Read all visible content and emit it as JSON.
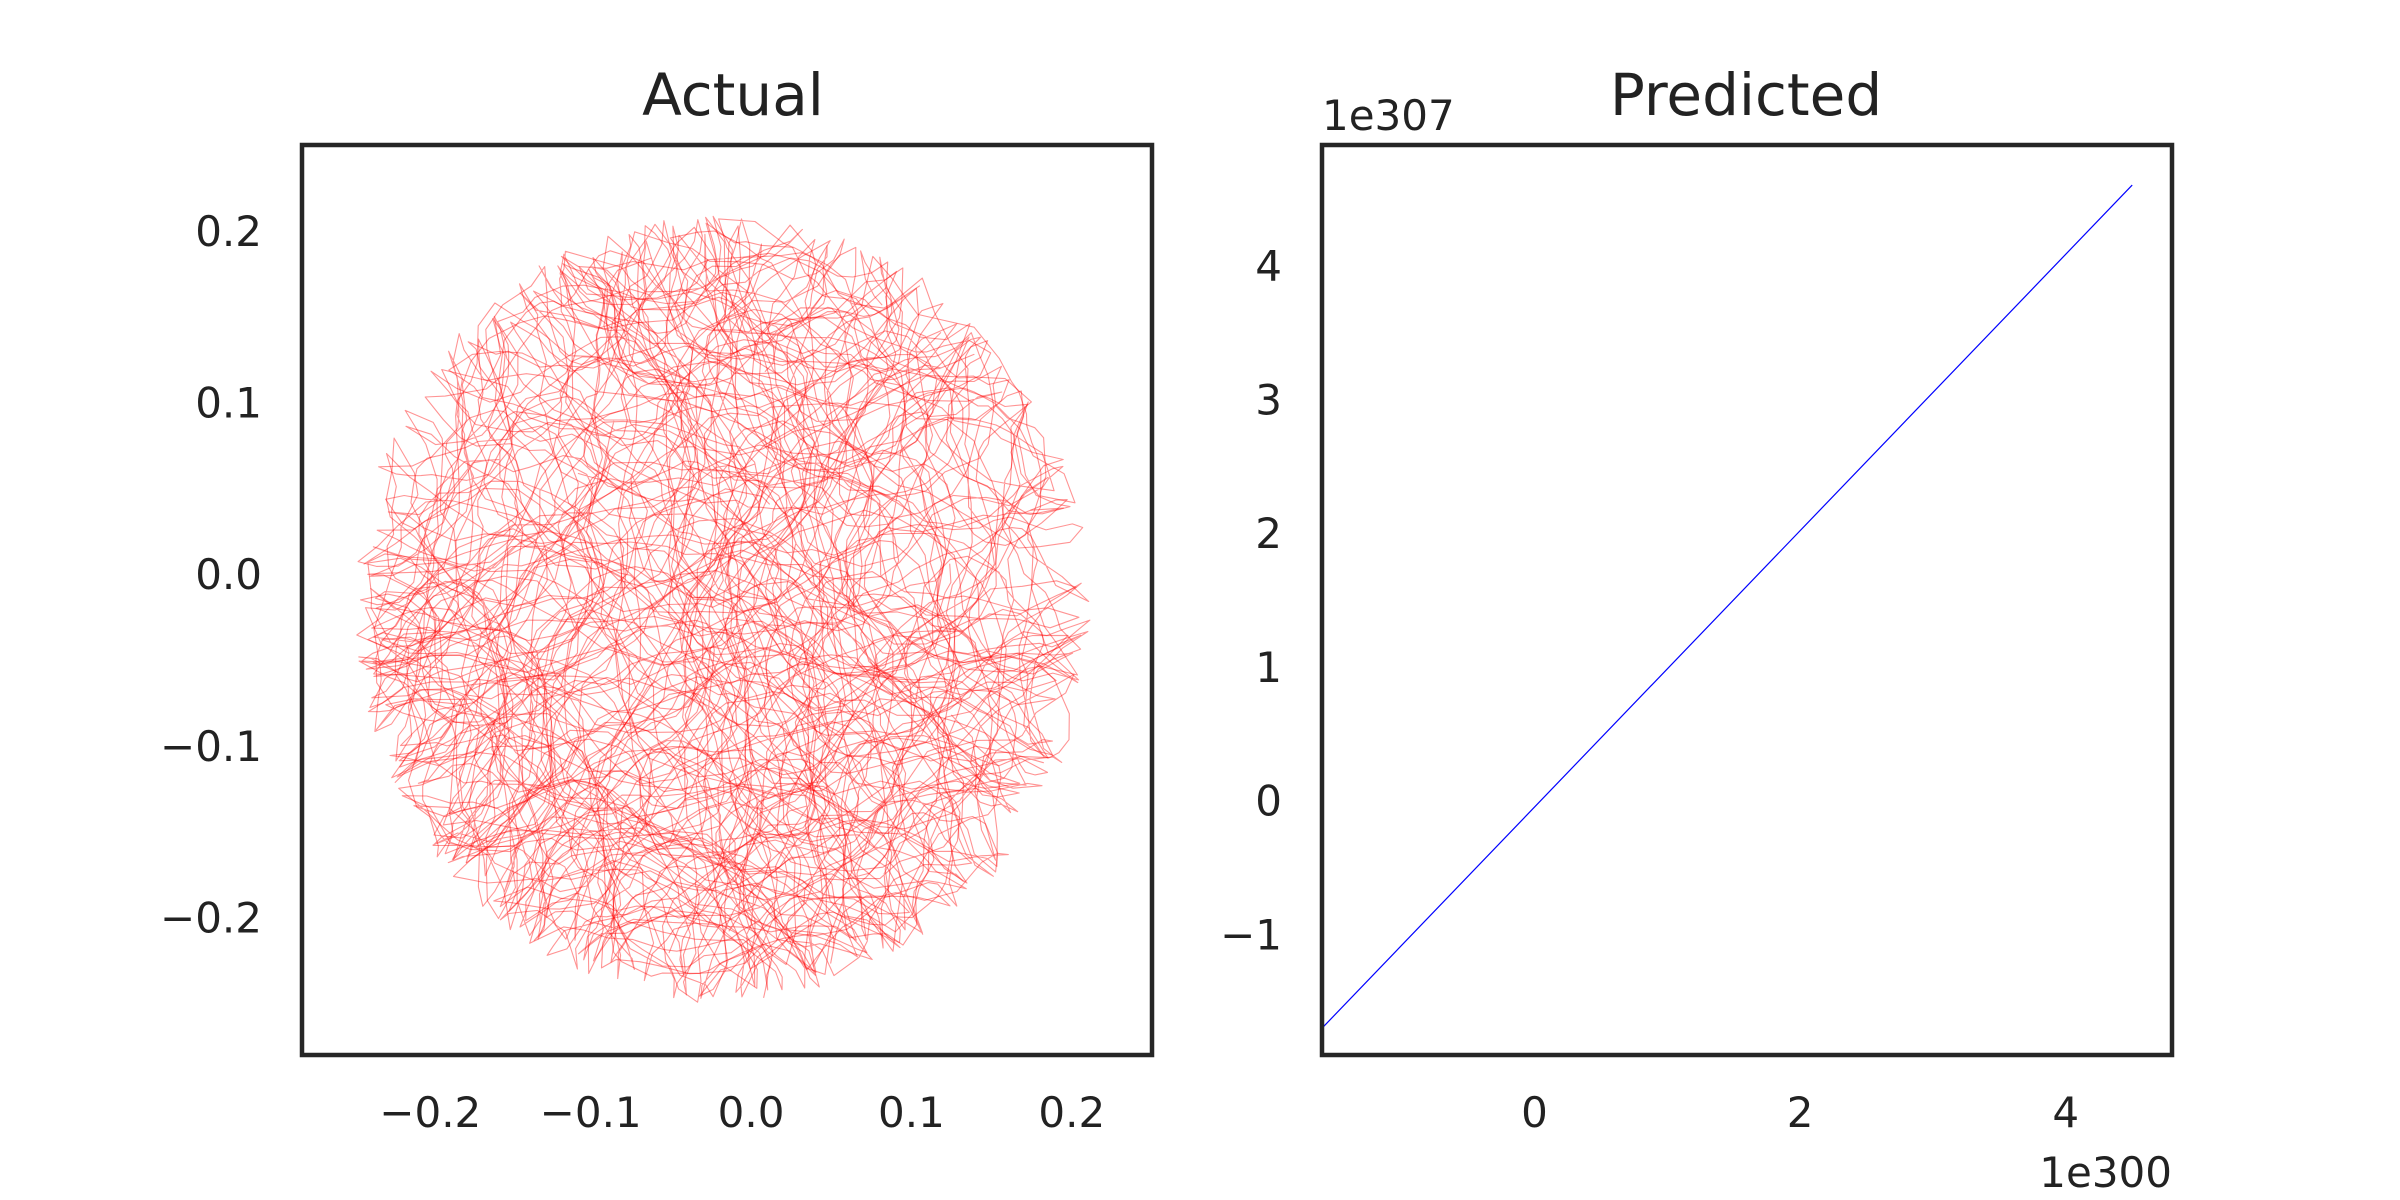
{
  "chart_data": [
    {
      "type": "line",
      "title": "Actual",
      "xlabel": "",
      "ylabel": "",
      "xlim": [
        -0.28,
        0.25
      ],
      "ylim": [
        -0.28,
        0.25
      ],
      "xticks": [
        -0.2,
        -0.1,
        0.0,
        0.1,
        0.2
      ],
      "yticks": [
        -0.2,
        -0.1,
        0.0,
        0.1,
        0.2
      ],
      "xtick_labels": [
        "−0.2",
        "−0.1",
        "0.0",
        "0.1",
        "0.2"
      ],
      "ytick_labels": [
        "−0.2",
        "−0.1",
        "0.0",
        "0.1",
        "0.2"
      ],
      "series": [
        {
          "color": "#ff0000",
          "description": "dense random-walk trajectory confined to a disk of radius about 0.23 centered near (-0.02, -0.02)",
          "extent": {
            "x": [
              -0.25,
              0.22
            ],
            "y": [
              -0.25,
              0.21
            ]
          }
        }
      ],
      "grid": false
    },
    {
      "type": "line",
      "title": "Predicted",
      "xlabel": "",
      "ylabel": "",
      "x_offset_label": "1e300",
      "y_offset_label": "1e307",
      "xlim": [
        -1.6,
        4.8
      ],
      "ylim": [
        -1.9,
        4.9
      ],
      "xticks": [
        0,
        2,
        4
      ],
      "yticks": [
        -1,
        0,
        1,
        2,
        3,
        4
      ],
      "xtick_labels": [
        "0",
        "2",
        "4"
      ],
      "ytick_labels": [
        "−1",
        "0",
        "1",
        "2",
        "3",
        "4"
      ],
      "series": [
        {
          "color": "#0000ff",
          "x": [
            -1.6,
            4.5
          ],
          "y": [
            -1.7,
            4.6
          ]
        }
      ],
      "grid": false
    }
  ]
}
